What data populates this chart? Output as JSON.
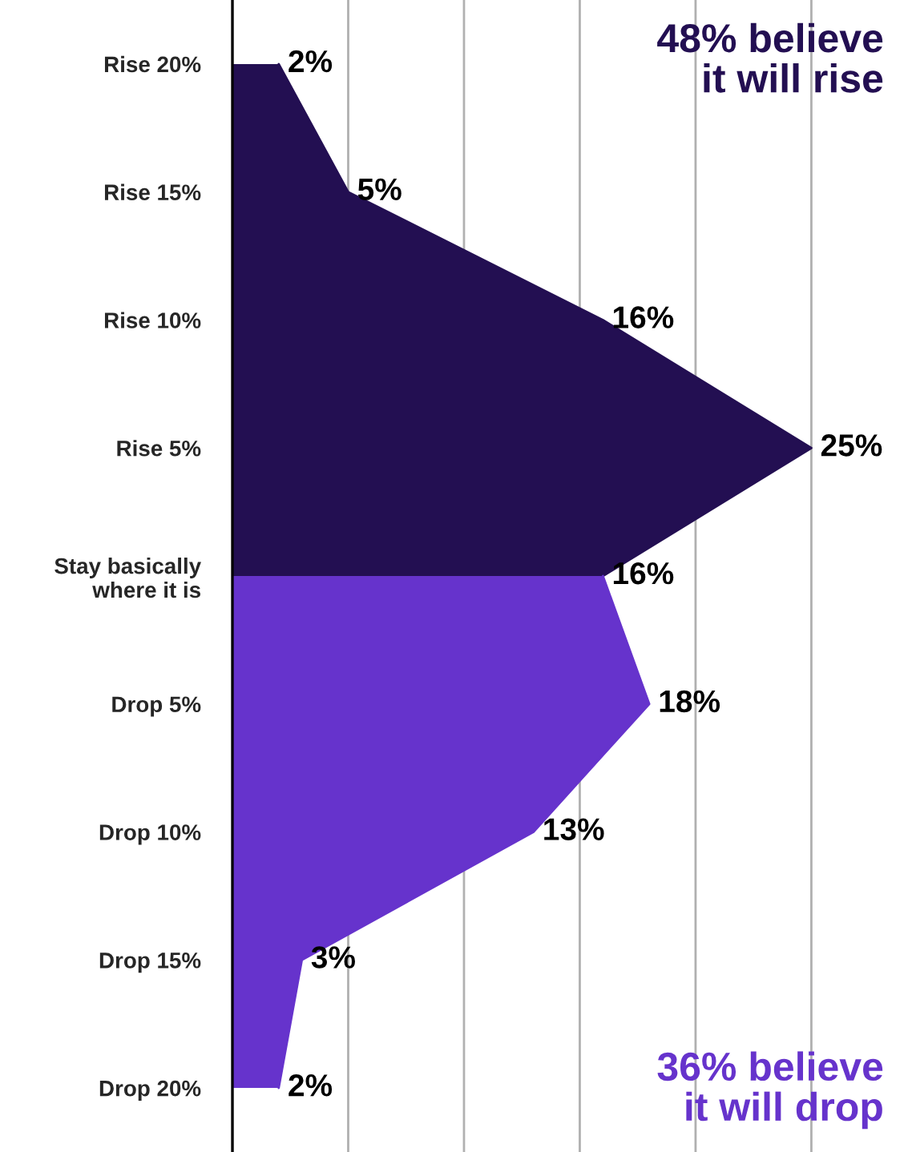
{
  "chart_data": {
    "type": "area",
    "orientation": "horizontal",
    "categories": [
      "Rise 20%",
      "Rise 15%",
      "Rise 10%",
      "Rise 5%",
      "Stay basically\nwhere it is",
      "Drop 5%",
      "Drop 10%",
      "Drop 15%",
      "Drop 20%"
    ],
    "series": [
      {
        "color": "#230f52",
        "values": [
          2,
          5,
          16,
          25,
          16,
          null,
          null,
          null,
          null
        ],
        "value_labels": [
          "2%",
          "5%",
          "16%",
          "25%",
          "16%",
          null,
          null,
          null,
          null
        ]
      },
      {
        "color": "#6633cc",
        "values": [
          null,
          null,
          null,
          null,
          16,
          18,
          13,
          3,
          2
        ],
        "value_labels": [
          null,
          null,
          null,
          null,
          null,
          "18%",
          "13%",
          "3%",
          "2%"
        ]
      }
    ],
    "xticks": [
      {
        "value": 0,
        "label": null
      },
      {
        "value": 5,
        "label": null
      },
      {
        "value": 10,
        "label": null
      },
      {
        "value": 15,
        "label": null
      },
      {
        "value": 20,
        "label": null
      },
      {
        "value": 25,
        "label": null
      }
    ],
    "grid": "x",
    "legend": false,
    "annotations": [
      "48% believe\nit will rise",
      "36% believe\nit will drop"
    ]
  }
}
